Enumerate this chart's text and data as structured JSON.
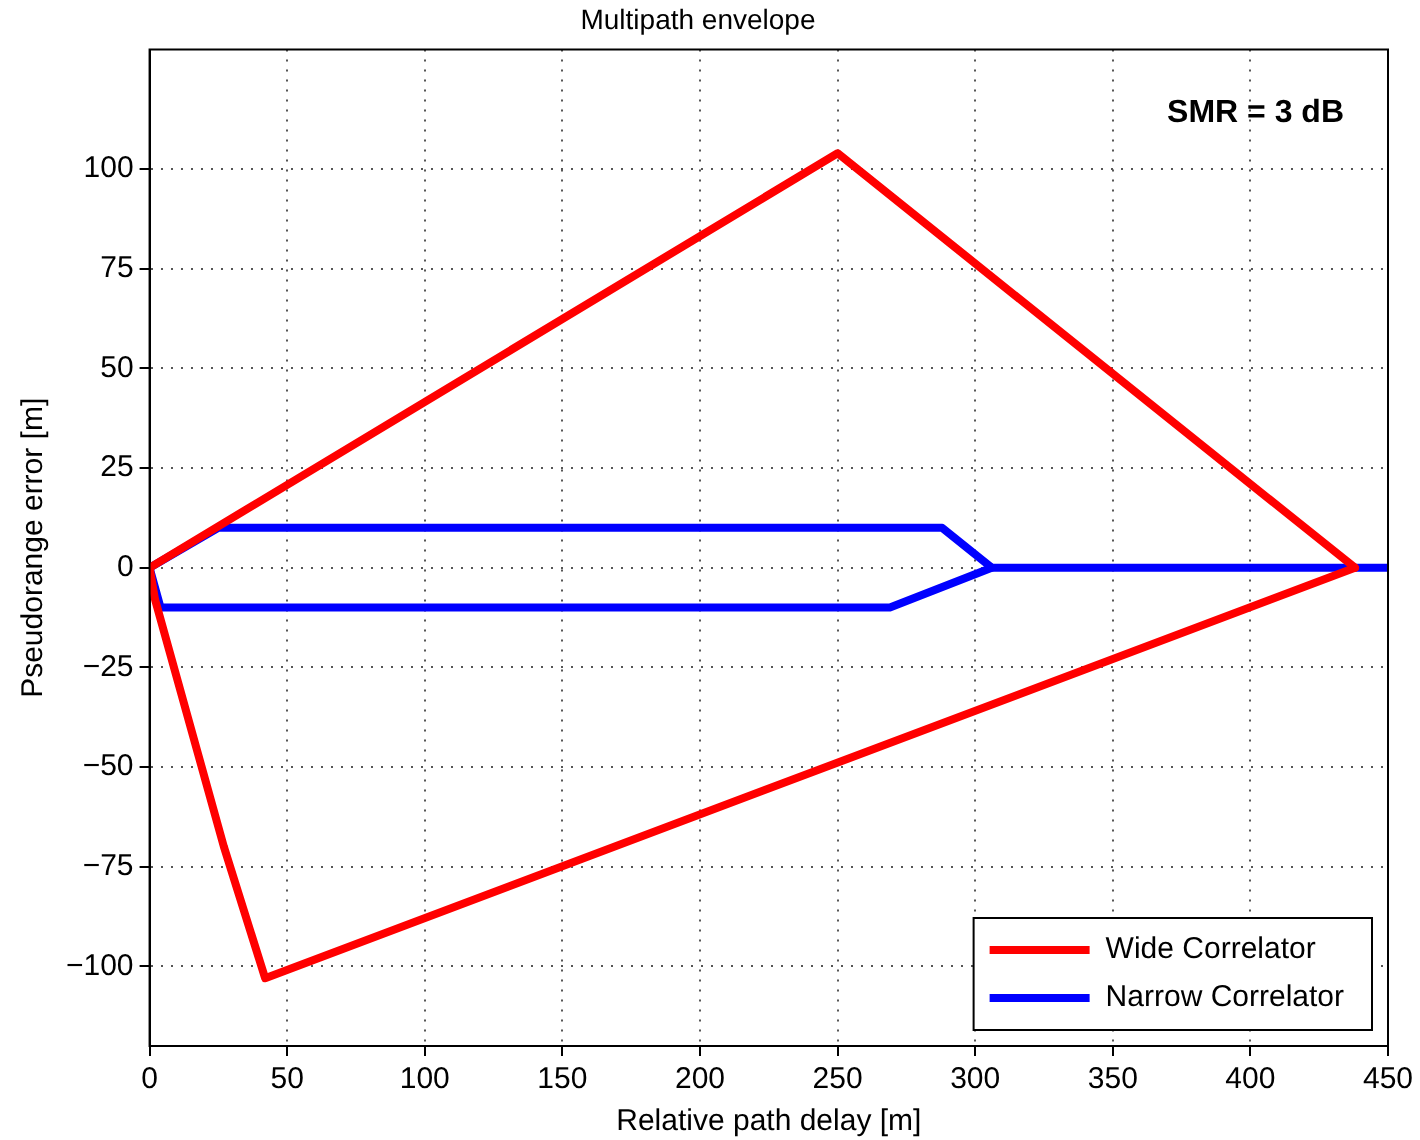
{
  "chart_data": {
    "type": "line",
    "title": "Multipath envelope",
    "xlabel": "Relative path delay [m]",
    "ylabel": "Pseudorange error [m]",
    "annotations": [
      "SMR = 3 dB"
    ],
    "series": [
      {
        "name": "Wide Correlator",
        "color": "#ff0000",
        "x": [
          0,
          250,
          438
        ],
        "values": [
          0,
          104,
          0
        ]
      },
      {
        "color": "#ff0000",
        "x": [
          0,
          2,
          27,
          42,
          438
        ],
        "values": [
          0,
          -8,
          -70,
          -103,
          0
        ]
      },
      {
        "name": "Narrow Correlator",
        "color": "#0000ff",
        "x": [
          0,
          25,
          288,
          306,
          450
        ],
        "values": [
          0,
          10,
          10,
          0,
          0
        ]
      },
      {
        "color": "#0000ff",
        "x": [
          0,
          4,
          269,
          306
        ],
        "values": [
          0,
          -10,
          -10,
          0
        ]
      }
    ],
    "xlim": [
      0,
      450
    ],
    "xticks": [
      0,
      50,
      100,
      150,
      200,
      250,
      300,
      350,
      400,
      450
    ],
    "ylim": [
      -120,
      130
    ],
    "yticks": [
      -100,
      -75,
      -50,
      -25,
      0,
      25,
      50,
      75,
      100
    ],
    "grid": true,
    "line_style": "solid",
    "marker": "none",
    "legend": "bottom right"
  }
}
